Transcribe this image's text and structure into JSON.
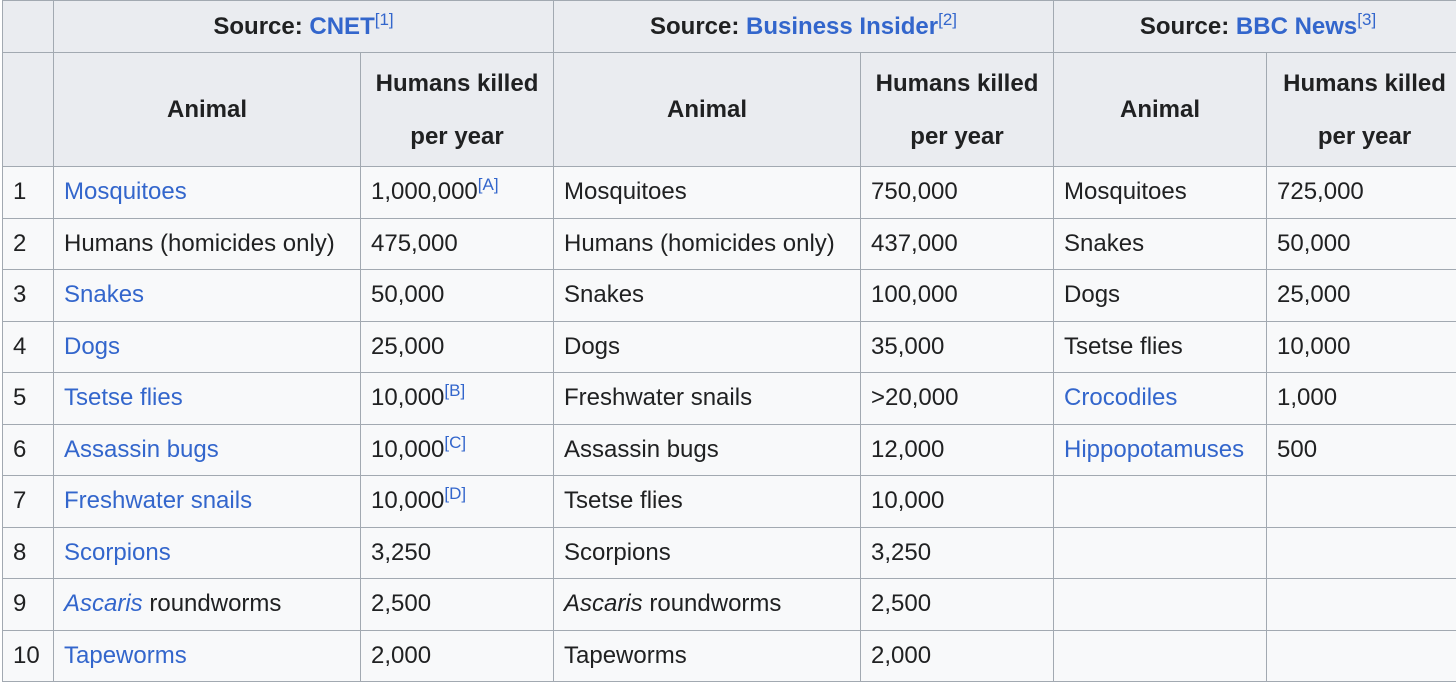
{
  "sources": [
    {
      "prefix": "Source: ",
      "name": "CNET",
      "ref": "[1]"
    },
    {
      "prefix": "Source: ",
      "name": "Business Insider",
      "ref": "[2]"
    },
    {
      "prefix": "Source: ",
      "name": "BBC News",
      "ref": "[3]"
    }
  ],
  "headers": {
    "animal": "Animal",
    "killed_line1": "Humans killed",
    "killed_line2": "per year"
  },
  "rows": [
    {
      "rank": "1",
      "cnet": {
        "animal": "Mosquitoes",
        "linked": true,
        "value": "1,000,000",
        "note": "[A]"
      },
      "bi": {
        "animal": "Mosquitoes",
        "value": "750,000"
      },
      "bbc": {
        "animal": "Mosquitoes",
        "linked": false,
        "value": "725,000"
      }
    },
    {
      "rank": "2",
      "cnet": {
        "animal": "Humans (homicides only)",
        "linked": false,
        "value": "475,000",
        "note": ""
      },
      "bi": {
        "animal": "Humans (homicides only)",
        "value": "437,000"
      },
      "bbc": {
        "animal": "Snakes",
        "linked": false,
        "value": "50,000"
      }
    },
    {
      "rank": "3",
      "cnet": {
        "animal": "Snakes",
        "linked": true,
        "value": "50,000",
        "note": ""
      },
      "bi": {
        "animal": "Snakes",
        "value": "100,000"
      },
      "bbc": {
        "animal": "Dogs",
        "linked": false,
        "value": "25,000"
      }
    },
    {
      "rank": "4",
      "cnet": {
        "animal": "Dogs",
        "linked": true,
        "value": "25,000",
        "note": ""
      },
      "bi": {
        "animal": "Dogs",
        "value": "35,000"
      },
      "bbc": {
        "animal": "Tsetse flies",
        "linked": false,
        "value": "10,000"
      }
    },
    {
      "rank": "5",
      "cnet": {
        "animal": "Tsetse flies",
        "linked": true,
        "value": "10,000",
        "note": "[B]"
      },
      "bi": {
        "animal": "Freshwater snails",
        "value": ">20,000"
      },
      "bbc": {
        "animal": "Crocodiles",
        "linked": true,
        "value": "1,000"
      }
    },
    {
      "rank": "6",
      "cnet": {
        "animal": "Assassin bugs",
        "linked": true,
        "value": "10,000",
        "note": "[C]"
      },
      "bi": {
        "animal": "Assassin bugs",
        "value": "12,000"
      },
      "bbc": {
        "animal": "Hippopotamuses",
        "linked": true,
        "value": "500"
      }
    },
    {
      "rank": "7",
      "cnet": {
        "animal": "Freshwater snails",
        "linked": true,
        "value": "10,000",
        "note": "[D]"
      },
      "bi": {
        "animal": "Tsetse flies",
        "value": "10,000"
      },
      "bbc": {
        "animal": "",
        "linked": false,
        "value": ""
      }
    },
    {
      "rank": "8",
      "cnet": {
        "animal": "Scorpions",
        "linked": true,
        "value": "3,250",
        "note": ""
      },
      "bi": {
        "animal": "Scorpions",
        "value": "3,250"
      },
      "bbc": {
        "animal": "",
        "linked": false,
        "value": ""
      }
    },
    {
      "rank": "9",
      "cnet": {
        "animal_italic": "Ascaris",
        "animal_rest": " roundworms",
        "linked": true,
        "value": "2,500",
        "note": ""
      },
      "bi": {
        "animal_italic": "Ascaris",
        "animal_rest": " roundworms",
        "value": "2,500"
      },
      "bbc": {
        "animal": "",
        "linked": false,
        "value": ""
      }
    },
    {
      "rank": "10",
      "cnet": {
        "animal": "Tapeworms",
        "linked": true,
        "value": "2,000",
        "note": ""
      },
      "bi": {
        "animal": "Tapeworms",
        "value": "2,000"
      },
      "bbc": {
        "animal": "",
        "linked": false,
        "value": ""
      }
    }
  ],
  "colors": {
    "link": "#3366cc",
    "header_bg": "#eaecf0",
    "cell_bg": "#f8f9fa",
    "border": "#a2a9b1",
    "text": "#202122"
  }
}
